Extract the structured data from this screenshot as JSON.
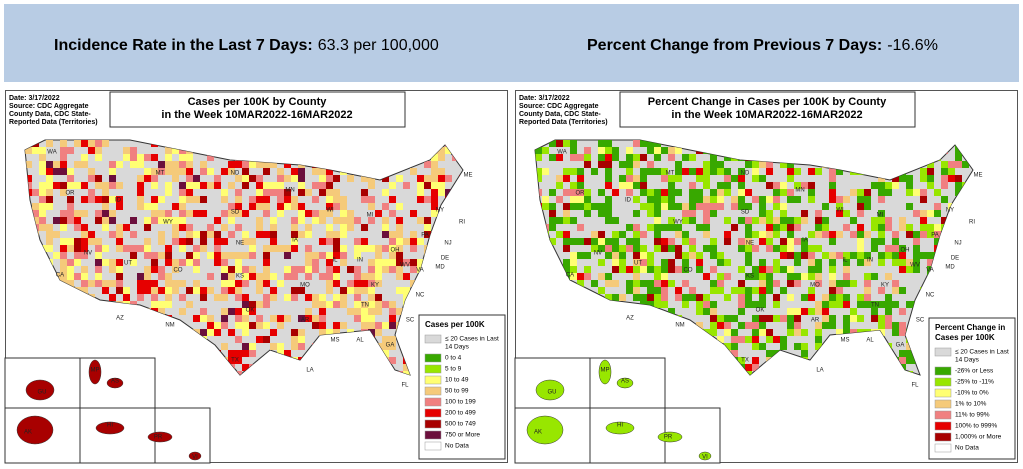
{
  "header": {
    "left": {
      "label": "Incidence Rate in the Last 7 Days:",
      "value": "63.3 per 100,000"
    },
    "right": {
      "label": "Percent Change from Previous 7 Days:",
      "value": "-16.6%"
    }
  },
  "maps": [
    {
      "date": "Date: 3/17/2022",
      "source": [
        "Source: CDC Aggregate",
        "County Data, CDC State-",
        "Reported Data (Territories)"
      ],
      "title": [
        "Cases per 100K by County",
        "in the Week 10MAR2022-16MAR2022"
      ],
      "legend_title": [
        "Cases per 100K"
      ],
      "legend": [
        {
          "label": [
            "≤ 20 Cases in Last",
            "14 Days"
          ],
          "color": "#d9d9d9"
        },
        {
          "label": [
            "0 to 4"
          ],
          "color": "#38a800"
        },
        {
          "label": [
            "5 to 9"
          ],
          "color": "#98e600"
        },
        {
          "label": [
            "10 to 49"
          ],
          "color": "#ffff73"
        },
        {
          "label": [
            "50 to 99"
          ],
          "color": "#f5ca7a"
        },
        {
          "label": [
            "100 to 199"
          ],
          "color": "#f08080"
        },
        {
          "label": [
            "200 to 499"
          ],
          "color": "#e60000"
        },
        {
          "label": [
            "500 to 749"
          ],
          "color": "#a80000"
        },
        {
          "label": [
            "750 or More"
          ],
          "color": "#6b0f3c"
        },
        {
          "label": [
            "No Data"
          ],
          "color": "#ffffff"
        }
      ],
      "state_labels": [
        "WA",
        "OR",
        "CA",
        "NV",
        "ID",
        "MT",
        "WY",
        "UT",
        "CO",
        "AZ",
        "NM",
        "ND",
        "SD",
        "NE",
        "KS",
        "OK",
        "TX",
        "MN",
        "IA",
        "MO",
        "AR",
        "LA",
        "WI",
        "IL",
        "MI",
        "IN",
        "OH",
        "KY",
        "TN",
        "MS",
        "AL",
        "GA",
        "FL",
        "SC",
        "NC",
        "VA",
        "WV",
        "PA",
        "NY",
        "ME",
        "NJ",
        "DE",
        "MD",
        "RI",
        "GU",
        "MP",
        "AS",
        "AK",
        "HI",
        "PR",
        "VI"
      ]
    },
    {
      "date": "Date: 3/17/2022",
      "source": [
        "Source: CDC Aggregate",
        "County Data, CDC State-",
        "Reported Data (Territories)"
      ],
      "title": [
        "Percent Change in Cases per 100K by County",
        "in the Week 10MAR2022-16MAR2022"
      ],
      "legend_title": [
        "Percent Change in",
        "Cases per 100K"
      ],
      "legend": [
        {
          "label": [
            "≤ 20 Cases in Last",
            "14 Days"
          ],
          "color": "#d9d9d9"
        },
        {
          "label": [
            "-26% or Less"
          ],
          "color": "#38a800"
        },
        {
          "label": [
            "-25% to -11%"
          ],
          "color": "#98e600"
        },
        {
          "label": [
            "-10% to 0%"
          ],
          "color": "#ffff73"
        },
        {
          "label": [
            "1% to 10%"
          ],
          "color": "#f5ca7a"
        },
        {
          "label": [
            "11% to 99%"
          ],
          "color": "#f08080"
        },
        {
          "label": [
            "100% to 999%"
          ],
          "color": "#e60000"
        },
        {
          "label": [
            "1,000% or More"
          ],
          "color": "#a80000"
        },
        {
          "label": [
            "No Data"
          ],
          "color": "#ffffff"
        }
      ],
      "state_labels": [
        "WA",
        "OR",
        "CA",
        "NV",
        "ID",
        "MT",
        "WY",
        "UT",
        "CO",
        "AZ",
        "NM",
        "ND",
        "SD",
        "NE",
        "KS",
        "OK",
        "TX",
        "MN",
        "IA",
        "MO",
        "AR",
        "LA",
        "WI",
        "IL",
        "MI",
        "IN",
        "OH",
        "KY",
        "TN",
        "MS",
        "AL",
        "GA",
        "FL",
        "SC",
        "NC",
        "VA",
        "WV",
        "PA",
        "NY",
        "ME",
        "NJ",
        "DE",
        "MD",
        "RI",
        "GU",
        "MP",
        "AS",
        "AK",
        "HI",
        "PR",
        "VI"
      ]
    }
  ]
}
